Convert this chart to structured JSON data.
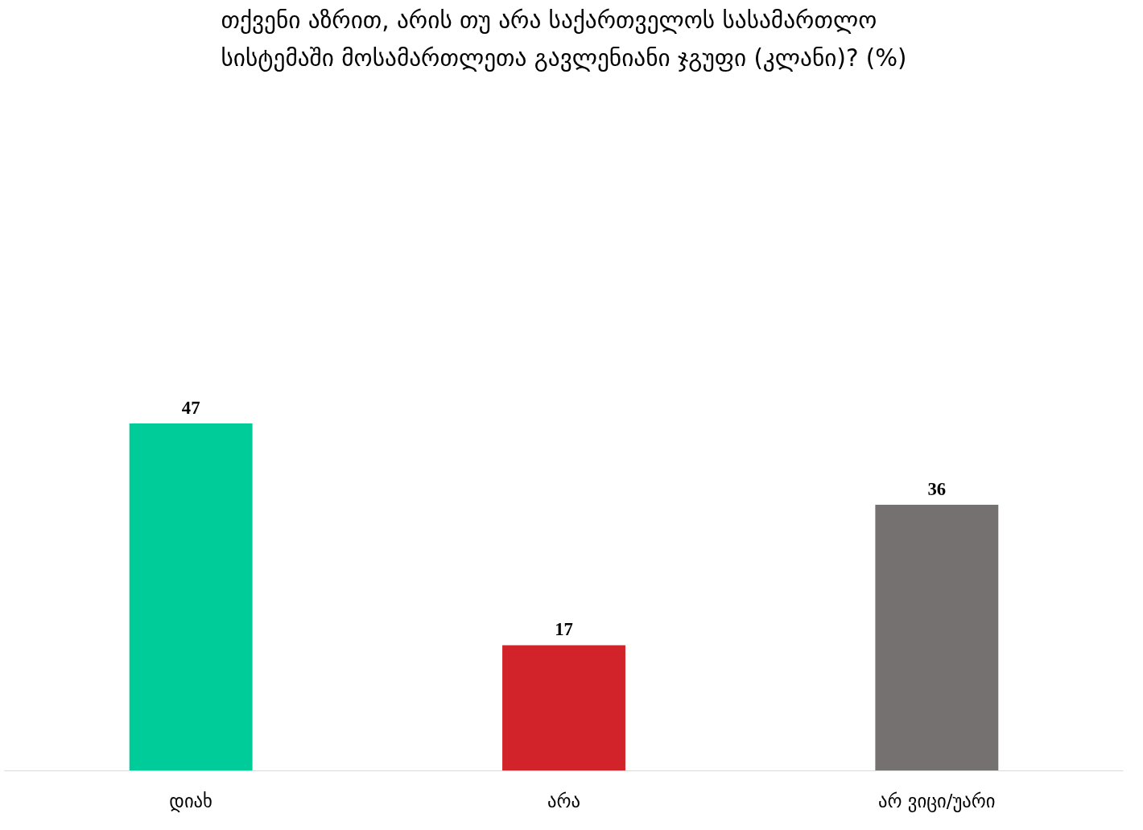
{
  "chart_data": {
    "type": "bar",
    "title": "თქვენი აზრით, არის თუ არა საქართველოს სასამართლო სისტემაში მოსამართლეთა გავლენიანი ჯგუფი (კლანი)? (%)",
    "categories": [
      "დიახ",
      "არა",
      "არ ვიცი/უარი"
    ],
    "values": [
      47,
      17,
      36
    ],
    "colors": [
      "#00cc99",
      "#d2232a",
      "#767171"
    ],
    "data_labels": true,
    "grid": false
  }
}
